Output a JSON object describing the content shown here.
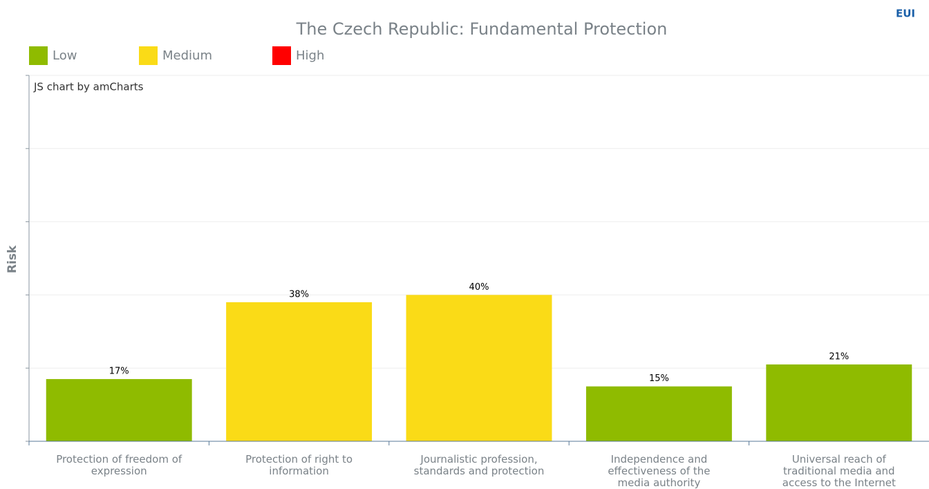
{
  "chart_data": {
    "type": "bar",
    "title": "The Czech Republic: Fundamental Protection",
    "y_label": "Risk",
    "credit": "JS chart by amCharts",
    "logo": "EUI",
    "legend": [
      {
        "name": "Low",
        "color": "#8fbb00"
      },
      {
        "name": "Medium",
        "color": "#fadb17"
      },
      {
        "name": "High",
        "color": "#ff0000"
      }
    ],
    "categories": [
      "Protection of freedom of expression",
      "Protection of right to information",
      "Journalistic profession, standards and protection",
      "Independence and effectiveness of the media authority",
      "Universal reach of traditional media and access to the Internet"
    ],
    "values": [
      17,
      38,
      40,
      15,
      21
    ],
    "value_labels": [
      "17%",
      "38%",
      "40%",
      "15%",
      "21%"
    ],
    "colors": [
      "#8fbb00",
      "#fadb17",
      "#fadb17",
      "#8fbb00",
      "#8fbb00"
    ],
    "ylim": [
      0,
      100
    ],
    "yticks": [
      0,
      20,
      40,
      60,
      80,
      100
    ],
    "grid": true
  }
}
